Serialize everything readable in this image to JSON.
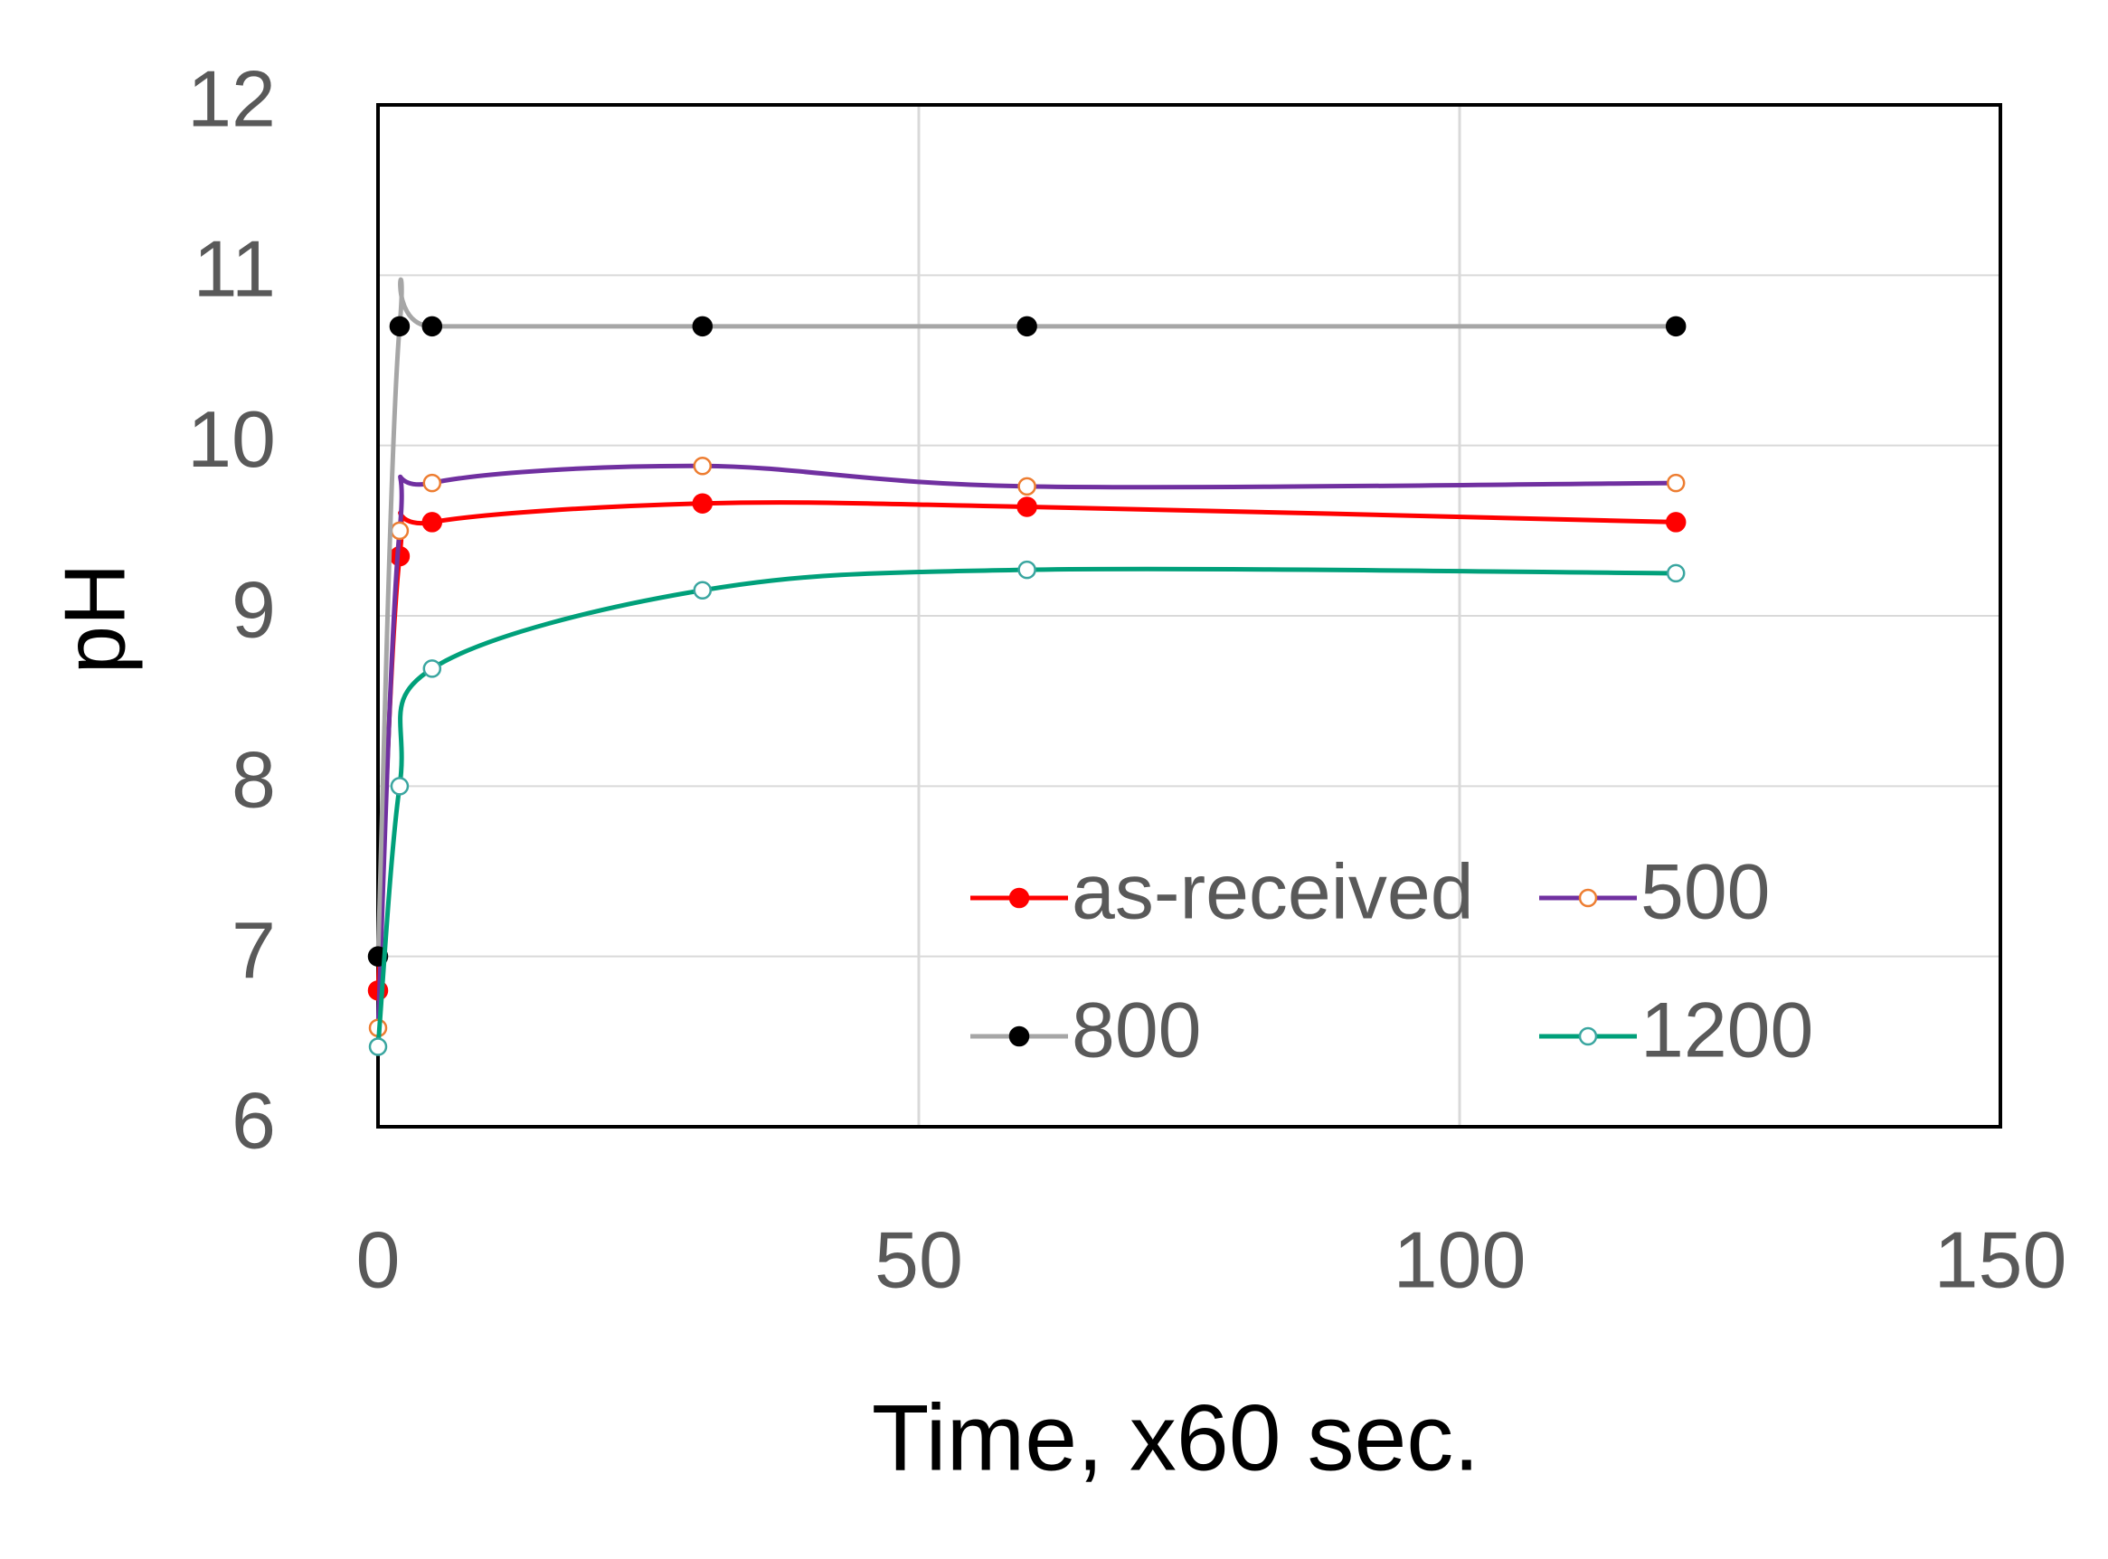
{
  "chart_data": {
    "type": "line",
    "x_label": "Time, x60 sec.",
    "y_label": "pH",
    "x": [
      0,
      2,
      5,
      30,
      60,
      120
    ],
    "series": [
      {
        "name": "as-received",
        "color": "#ff0000",
        "marker_color": "#ff0000",
        "marker_filled": true,
        "values": [
          6.8,
          9.35,
          9.55,
          9.66,
          9.64,
          9.55
        ]
      },
      {
        "name": "500",
        "color": "#7030a0",
        "marker_color": "#ed7d31",
        "marker_filled": false,
        "values": [
          6.58,
          9.5,
          9.78,
          9.88,
          9.76,
          9.78
        ]
      },
      {
        "name": "800",
        "color": "#a6a6a6",
        "marker_color": "#000000",
        "marker_filled": true,
        "values": [
          7.0,
          10.7,
          10.7,
          10.7,
          10.7,
          10.7
        ]
      },
      {
        "name": "1200",
        "color": "#00a07a",
        "marker_color": "#3aa6a0",
        "marker_filled": false,
        "values": [
          6.47,
          8.0,
          8.69,
          9.15,
          9.27,
          9.25
        ]
      }
    ],
    "smooth": true,
    "xlim": [
      0,
      150
    ],
    "xticks": [
      0,
      50,
      100,
      150
    ],
    "ylim": [
      6,
      12
    ],
    "yticks": [
      6,
      7,
      8,
      9,
      10,
      11,
      12
    ],
    "grid": true
  }
}
